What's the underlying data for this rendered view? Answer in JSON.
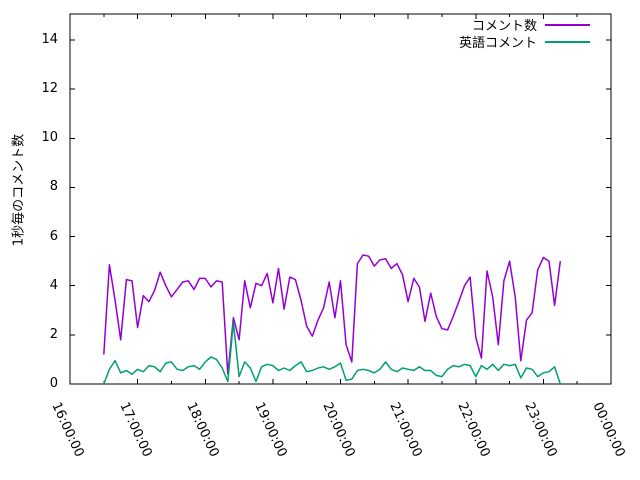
{
  "chart_data": {
    "type": "line",
    "title": "",
    "xlabel": "",
    "ylabel": "1秒毎のコメント数",
    "grid": false,
    "legend_position": "top-right-inside",
    "x_axis": {
      "tick_labels": [
        "16:00:00",
        "17:00:00",
        "18:00:00",
        "19:00:00",
        "20:00:00",
        "21:00:00",
        "22:00:00",
        "23:00:00",
        "00:00:00"
      ],
      "tick_hours": [
        16,
        17,
        18,
        19,
        20,
        21,
        22,
        23,
        24
      ],
      "minor_tick_hours": [
        16.5,
        17.5,
        18.5,
        19.5,
        20.5,
        21.5,
        22.5,
        23.5
      ],
      "range_hours": [
        16,
        24
      ]
    },
    "y_axis": {
      "tick_labels": [
        "0",
        "2",
        "4",
        "6",
        "8",
        "10",
        "12",
        "14"
      ],
      "tick_values": [
        0,
        2,
        4,
        6,
        8,
        10,
        12,
        14
      ],
      "range": [
        0,
        15.06
      ]
    },
    "x_times": [
      "16:30",
      "16:35",
      "16:40",
      "16:45",
      "16:50",
      "16:55",
      "17:00",
      "17:05",
      "17:10",
      "17:15",
      "17:20",
      "17:25",
      "17:30",
      "17:35",
      "17:40",
      "17:45",
      "17:50",
      "17:55",
      "18:00",
      "18:05",
      "18:10",
      "18:15",
      "18:20",
      "18:25",
      "18:30",
      "18:35",
      "18:40",
      "18:45",
      "18:50",
      "18:55",
      "19:00",
      "19:05",
      "19:10",
      "19:15",
      "19:20",
      "19:25",
      "19:30",
      "19:35",
      "19:40",
      "19:45",
      "19:50",
      "19:55",
      "20:00",
      "20:05",
      "20:10",
      "20:15",
      "20:20",
      "20:25",
      "20:30",
      "20:35",
      "20:40",
      "20:45",
      "20:50",
      "20:55",
      "21:00",
      "21:05",
      "21:10",
      "21:15",
      "21:20",
      "21:25",
      "21:30",
      "21:35",
      "21:40",
      "21:45",
      "21:50",
      "21:55",
      "22:00",
      "22:05",
      "22:10",
      "22:15",
      "22:20",
      "22:25",
      "22:30",
      "22:35",
      "22:40",
      "22:45",
      "22:50",
      "22:55",
      "23:00",
      "23:05",
      "23:10",
      "23:15"
    ],
    "series": [
      {
        "name": "コメント数",
        "color": "#9400d3",
        "values": [
          1.2,
          4.85,
          3.4,
          1.8,
          4.25,
          4.2,
          2.3,
          3.6,
          3.35,
          3.8,
          4.55,
          4.0,
          3.55,
          3.85,
          4.15,
          4.2,
          3.85,
          4.3,
          4.3,
          3.95,
          4.2,
          4.15,
          0.4,
          2.7,
          1.8,
          4.2,
          3.1,
          4.1,
          4.0,
          4.5,
          3.3,
          4.7,
          3.05,
          4.35,
          4.25,
          3.4,
          2.35,
          1.95,
          2.6,
          3.1,
          4.15,
          2.7,
          4.2,
          1.6,
          0.9,
          4.9,
          5.25,
          5.2,
          4.8,
          5.05,
          5.1,
          4.7,
          4.9,
          4.45,
          3.35,
          4.3,
          3.95,
          2.55,
          3.7,
          2.75,
          2.25,
          2.2,
          2.75,
          3.35,
          4.0,
          4.35,
          1.9,
          1.05,
          4.6,
          3.55,
          1.6,
          4.2,
          5.0,
          3.55,
          0.95,
          2.6,
          2.9,
          4.65,
          5.15,
          5.0,
          3.2,
          5.0
        ]
      },
      {
        "name": "英語コメント",
        "color": "#009e73",
        "values": [
          0.0,
          0.6,
          0.95,
          0.45,
          0.55,
          0.4,
          0.6,
          0.5,
          0.75,
          0.7,
          0.5,
          0.85,
          0.9,
          0.6,
          0.55,
          0.7,
          0.75,
          0.6,
          0.9,
          1.1,
          1.0,
          0.65,
          0.1,
          2.5,
          0.3,
          0.9,
          0.65,
          0.1,
          0.7,
          0.8,
          0.75,
          0.55,
          0.65,
          0.55,
          0.75,
          0.9,
          0.5,
          0.55,
          0.65,
          0.7,
          0.6,
          0.7,
          0.85,
          0.15,
          0.2,
          0.55,
          0.6,
          0.55,
          0.45,
          0.6,
          0.9,
          0.6,
          0.5,
          0.65,
          0.6,
          0.55,
          0.7,
          0.55,
          0.55,
          0.35,
          0.3,
          0.6,
          0.75,
          0.7,
          0.8,
          0.75,
          0.3,
          0.75,
          0.6,
          0.8,
          0.55,
          0.8,
          0.75,
          0.8,
          0.25,
          0.65,
          0.6,
          0.3,
          0.45,
          0.5,
          0.7,
          0.0
        ]
      }
    ]
  }
}
